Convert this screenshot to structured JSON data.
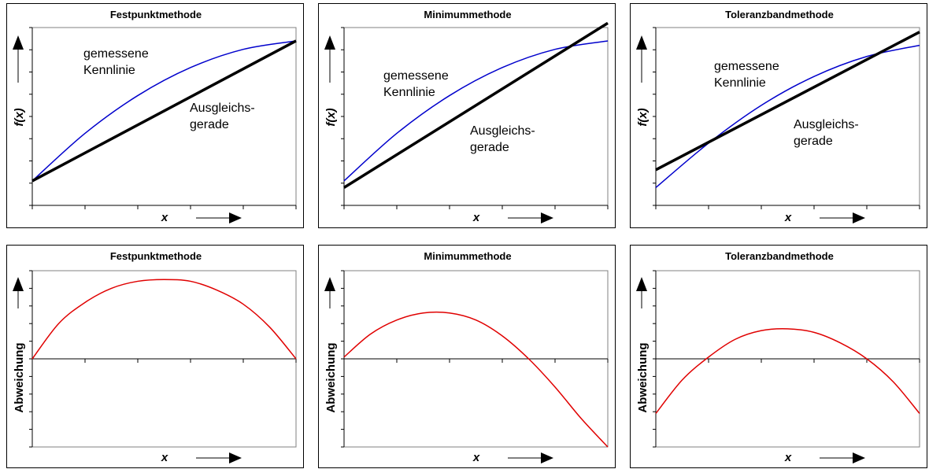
{
  "chart_data": [
    {
      "type": "line",
      "title": "Festpunktmethode",
      "xlabel": "x",
      "ylabel": "f(x)",
      "annotations": [
        [
          "gemessene",
          "Kennlinie"
        ],
        [
          "Ausgleichs-",
          "gerade"
        ]
      ],
      "xlim": [
        0,
        5
      ],
      "ylim": [
        0,
        8
      ],
      "grid": false,
      "series": [
        {
          "x": [
            0,
            1,
            2,
            3,
            4,
            5
          ],
          "values": [
            1.1,
            3.24,
            4.94,
            6.2,
            7.02,
            7.4
          ],
          "color": "#0000cc"
        },
        {
          "x": [
            0,
            5
          ],
          "values": [
            1.1,
            7.4
          ],
          "color": "#000000"
        }
      ]
    },
    {
      "type": "line",
      "title": "Minimummethode",
      "xlabel": "x",
      "ylabel": "f(x)",
      "annotations": [
        [
          "gemessene",
          "Kennlinie"
        ],
        [
          "Ausgleichs-",
          "gerade"
        ]
      ],
      "xlim": [
        0,
        5
      ],
      "ylim": [
        0,
        8
      ],
      "grid": false,
      "series": [
        {
          "x": [
            0,
            1,
            2,
            3,
            4,
            5
          ],
          "values": [
            1.1,
            3.24,
            4.94,
            6.2,
            7.02,
            7.4
          ],
          "color": "#0000cc"
        },
        {
          "x": [
            0,
            5
          ],
          "values": [
            0.8,
            8.2
          ],
          "color": "#000000"
        }
      ]
    },
    {
      "type": "line",
      "title": "Toleranzbandmethode",
      "xlabel": "x",
      "ylabel": "f(x)",
      "annotations": [
        [
          "gemessene",
          "Kennlinie"
        ],
        [
          "Ausgleichs-",
          "gerade"
        ]
      ],
      "xlim": [
        0,
        5
      ],
      "ylim": [
        0,
        8
      ],
      "grid": false,
      "series": [
        {
          "x": [
            0,
            1,
            2,
            3,
            4,
            5
          ],
          "values": [
            0.8,
            2.8,
            4.5,
            5.8,
            6.7,
            7.2
          ],
          "color": "#0000cc"
        },
        {
          "x": [
            0,
            5
          ],
          "values": [
            1.6,
            7.8
          ],
          "color": "#000000"
        }
      ]
    },
    {
      "type": "line",
      "title": "Festpunktmethode",
      "xlabel": "x",
      "ylabel": "Abweichung",
      "xlim": [
        0,
        5
      ],
      "ylim": [
        -5,
        5
      ],
      "grid": false,
      "series": [
        {
          "x": [
            0,
            0.5,
            1,
            1.5,
            2,
            2.5,
            3,
            3.5,
            4,
            4.5,
            5
          ],
          "values": [
            0,
            2.0,
            3.2,
            4.0,
            4.4,
            4.5,
            4.4,
            3.9,
            3.1,
            1.8,
            0
          ],
          "color": "#e00000"
        }
      ]
    },
    {
      "type": "line",
      "title": "Minimummethode",
      "xlabel": "x",
      "ylabel": "Abweichung",
      "xlim": [
        0,
        5
      ],
      "ylim": [
        -5,
        5
      ],
      "grid": false,
      "series": [
        {
          "x": [
            0,
            0.5,
            1,
            1.5,
            2,
            2.5,
            3,
            3.5,
            4,
            4.5,
            5
          ],
          "values": [
            0.1,
            1.4,
            2.2,
            2.6,
            2.6,
            2.2,
            1.3,
            0,
            -1.6,
            -3.4,
            -5.0
          ],
          "color": "#e00000"
        }
      ]
    },
    {
      "type": "line",
      "title": "Toleranzbandmethode",
      "xlabel": "x",
      "ylabel": "Abweichung",
      "xlim": [
        0,
        5
      ],
      "ylim": [
        -5,
        5
      ],
      "grid": false,
      "series": [
        {
          "x": [
            0,
            0.5,
            1,
            1.5,
            2,
            2.5,
            3,
            3.5,
            4,
            4.5,
            5
          ],
          "values": [
            -3.1,
            -1.2,
            0.1,
            1.1,
            1.6,
            1.7,
            1.5,
            0.9,
            0,
            -1.3,
            -3.1
          ],
          "color": "#e00000"
        }
      ]
    }
  ]
}
